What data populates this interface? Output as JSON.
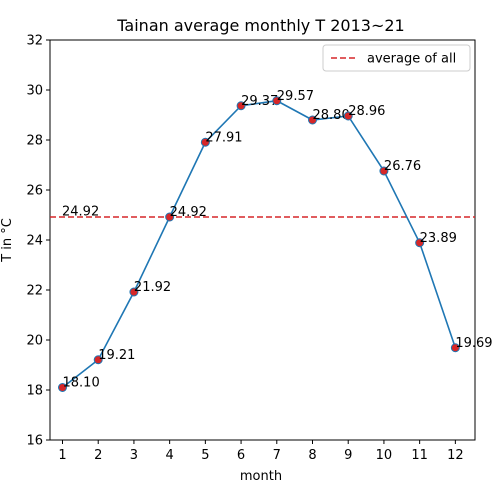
{
  "chart_data": {
    "type": "line",
    "title": "Tainan average monthly T 2013~21",
    "xlabel": "month",
    "ylabel": "T in °C",
    "x": [
      1,
      2,
      3,
      4,
      5,
      6,
      7,
      8,
      9,
      10,
      11,
      12
    ],
    "x_tick_labels": [
      "1",
      "2",
      "3",
      "4",
      "5",
      "6",
      "7",
      "8",
      "9",
      "10",
      "11",
      "12"
    ],
    "series": [
      {
        "values": [
          18.1,
          19.21,
          21.92,
          24.92,
          27.91,
          29.37,
          29.57,
          28.8,
          28.96,
          26.76,
          23.89,
          19.69
        ],
        "labels": [
          "18.10",
          "19.21",
          "21.92",
          "24.92",
          "27.91",
          "29.37",
          "29.57",
          "28.80",
          "28.96",
          "26.76",
          "23.89",
          "19.69"
        ],
        "line_color": "#1f77b4",
        "marker_color": "#d62728"
      }
    ],
    "average_line": {
      "value": 24.92,
      "label": "24.92",
      "legend": "average of all",
      "color": "#d62728",
      "style": "dashed"
    },
    "xlim": [
      0.65,
      12.55
    ],
    "ylim": [
      16,
      32
    ],
    "y_ticks": [
      16,
      18,
      20,
      22,
      24,
      26,
      28,
      30,
      32
    ],
    "grid": false,
    "legend_position": "top-right"
  }
}
